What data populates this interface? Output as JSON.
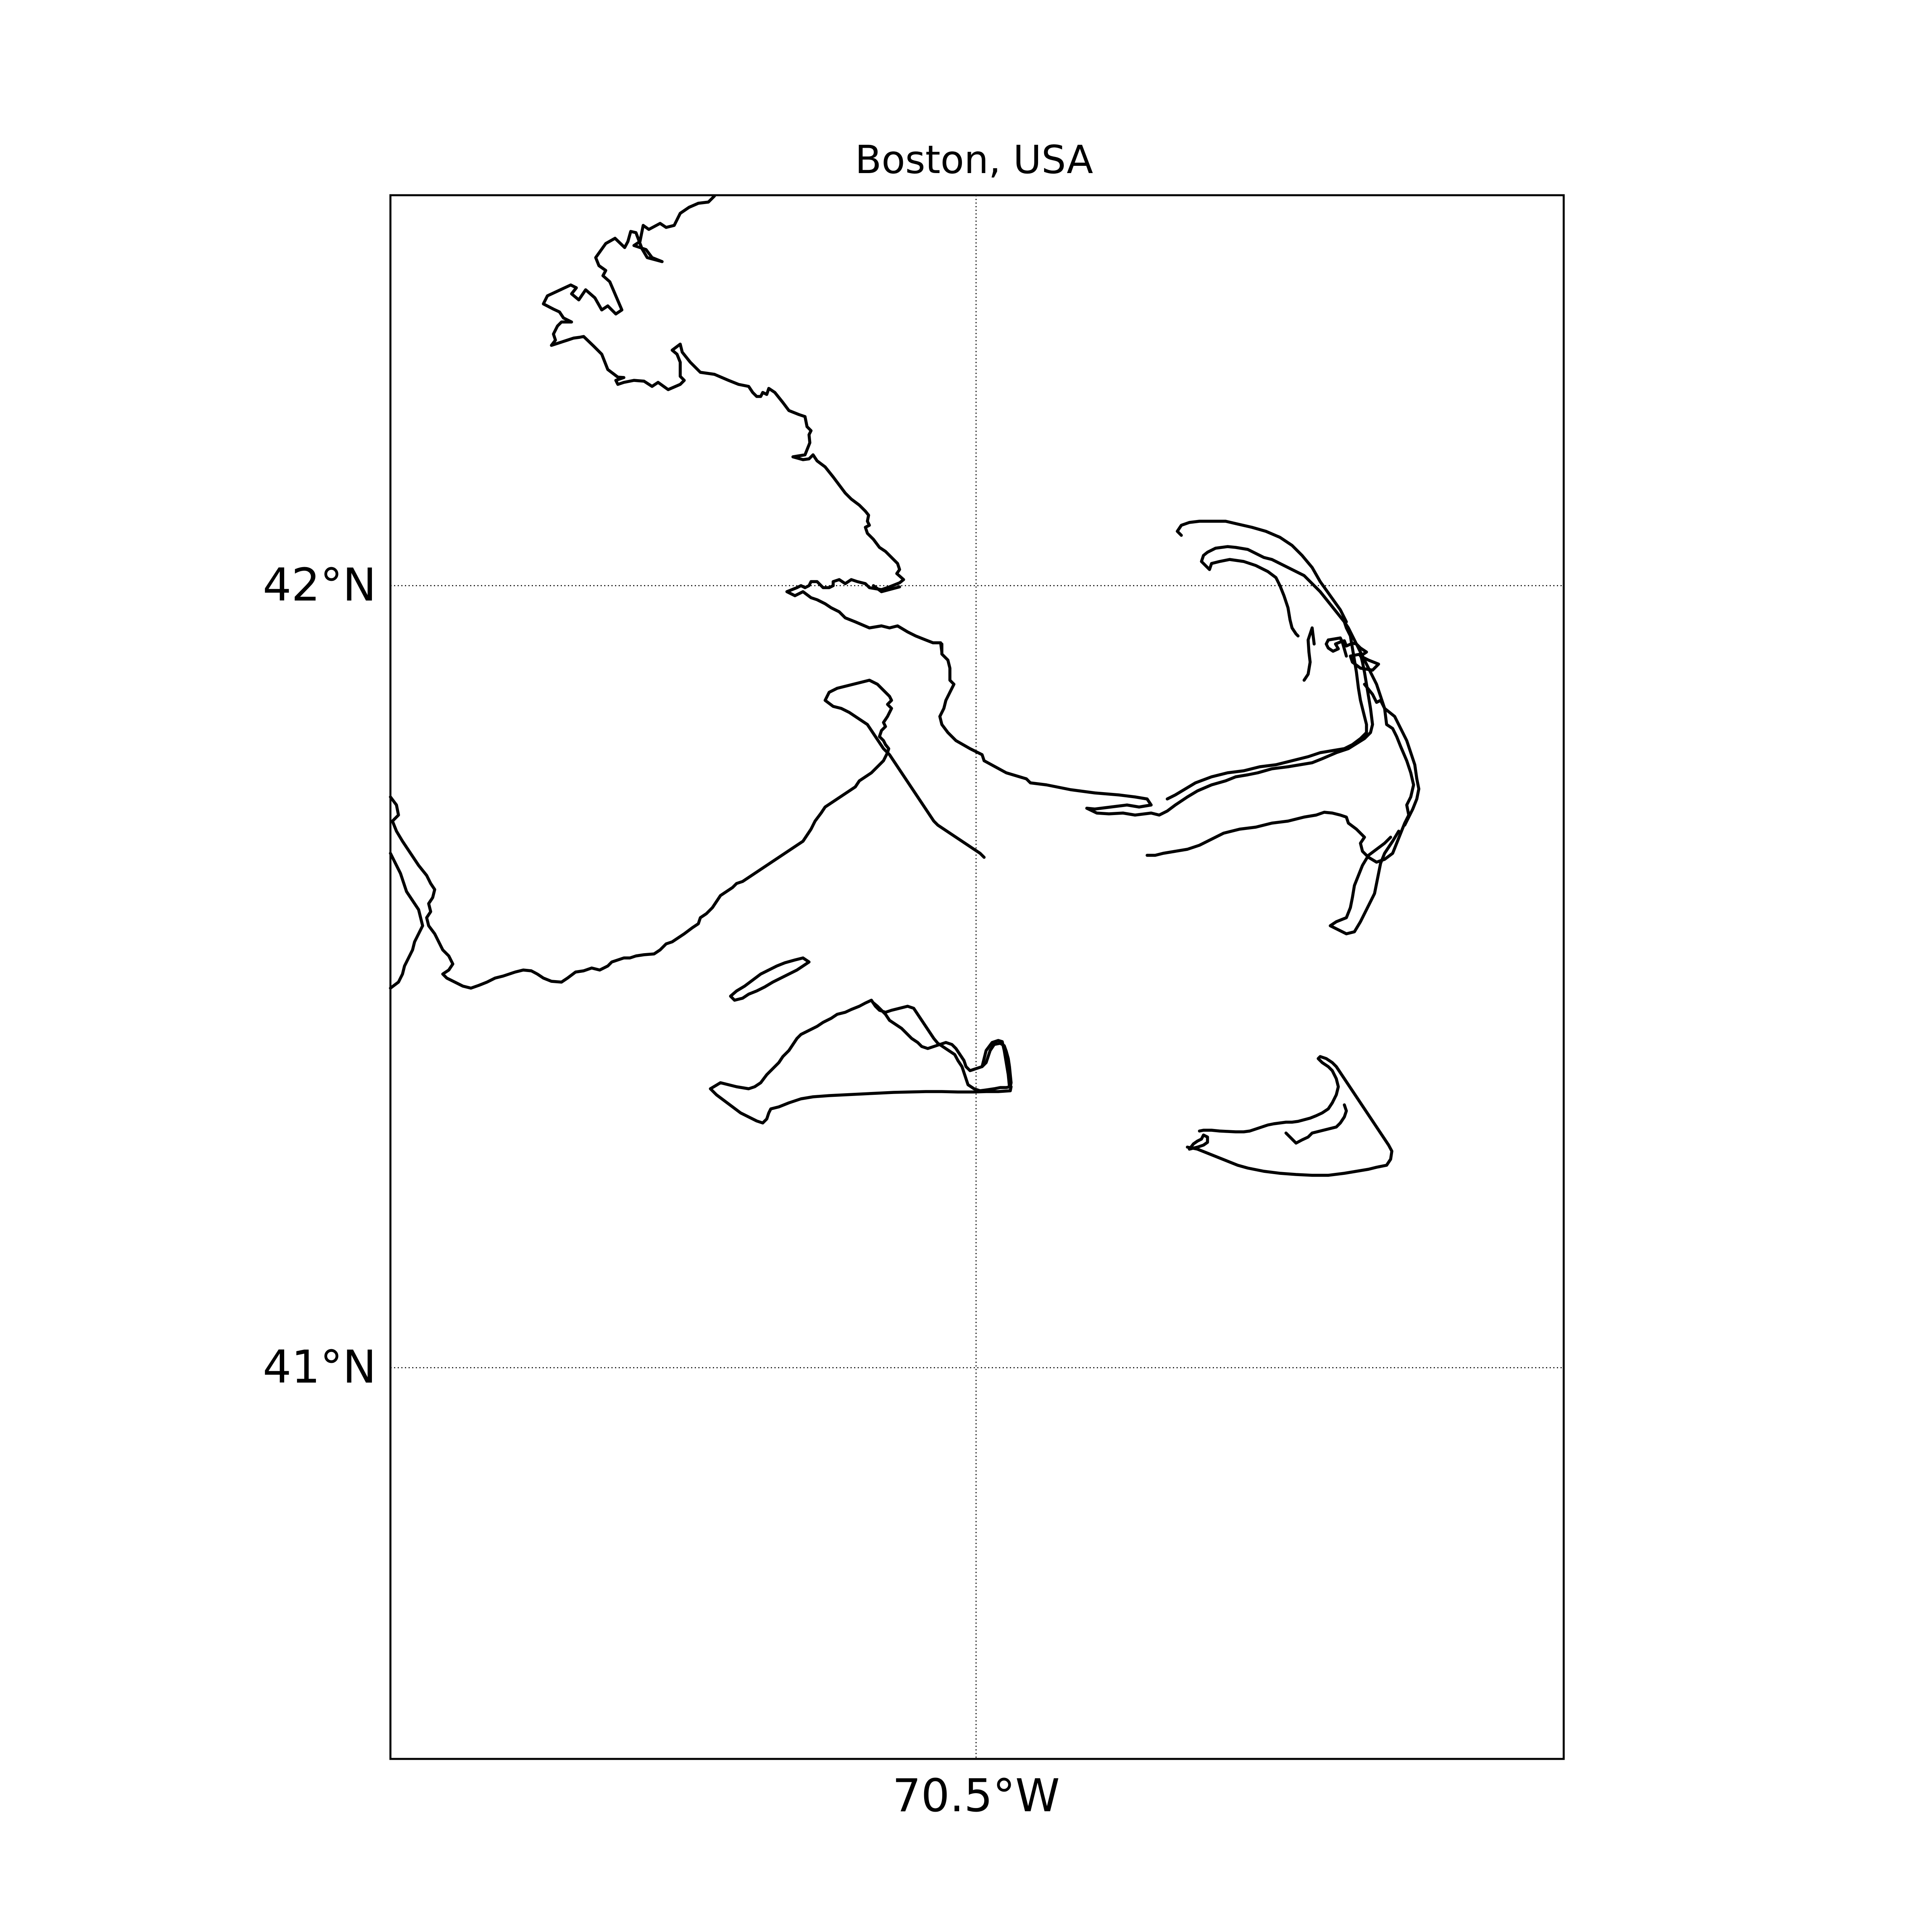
{
  "map": {
    "title": "Boston, USA",
    "meridian_labels": [
      "70.5°W"
    ],
    "parallel_labels": [
      "42°N",
      "41°N"
    ],
    "meridians_deg": [
      -70.5
    ],
    "parallels_deg": [
      42.0,
      41.0
    ],
    "features": [
      "coastline-mainland",
      "cape-cod",
      "marthas-vineyard",
      "nantucket",
      "elizabeth-islands",
      "monomoy-island"
    ],
    "line_color": "#000000",
    "grid": true,
    "grid_style": "dotted"
  }
}
